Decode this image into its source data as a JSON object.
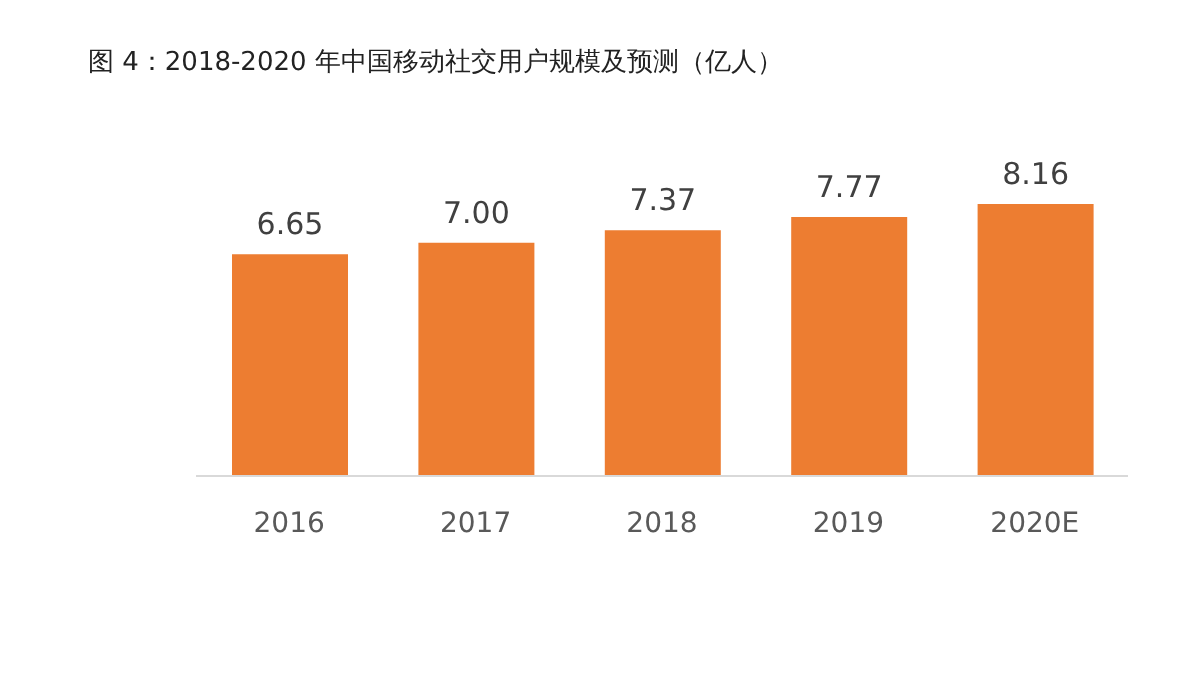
{
  "chart_data": {
    "type": "bar",
    "title": "图 4：2018-2020 年中国移动社交用户规模及预测（亿人）",
    "categories": [
      "2016",
      "2017",
      "2018",
      "2019",
      "2020E"
    ],
    "values": [
      6.65,
      7.0,
      7.37,
      7.77,
      8.16
    ],
    "value_labels": [
      "6.65",
      "7.00",
      "7.37",
      "7.77",
      "8.16"
    ],
    "color": "#ed7d31"
  }
}
